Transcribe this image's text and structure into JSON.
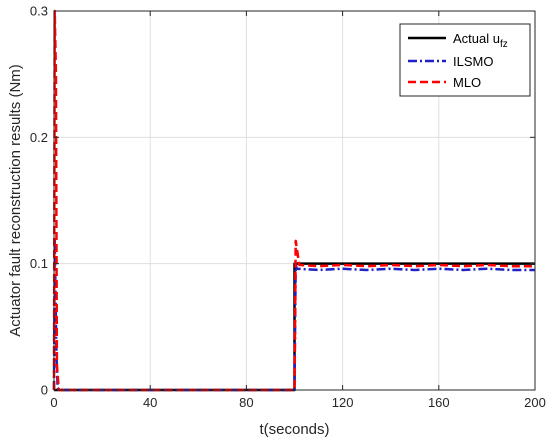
{
  "chart_data": {
    "type": "line",
    "title": "",
    "xlabel": "t(seconds)",
    "ylabel": "Actuator fault reconstruction results (Nm)",
    "xlim": [
      0,
      200
    ],
    "ylim": [
      0,
      0.3
    ],
    "xticks": [
      "0",
      "40",
      "80",
      "120",
      "160",
      "200"
    ],
    "yticks": [
      "0",
      "0.1",
      "0.2",
      "0.3"
    ],
    "grid": true,
    "legend_position": "top-right",
    "series": [
      {
        "name": "Actual u",
        "subscript": "fz",
        "color": "#000000",
        "style": "solid",
        "x": [
          0,
          100,
          100,
          200
        ],
        "y": [
          0,
          0,
          0.1,
          0.1
        ]
      },
      {
        "name": "ILSMO",
        "color": "#2020c8",
        "style": "dashdot",
        "x": [
          0,
          0.3,
          1.0,
          1.5,
          2.0,
          100,
          100,
          100.5,
          101,
          110,
          120,
          130,
          140,
          150,
          160,
          170,
          180,
          190,
          200
        ],
        "y": [
          0,
          0.12,
          0.03,
          0.002,
          0,
          0,
          0.002,
          0.099,
          0.096,
          0.095,
          0.096,
          0.095,
          0.096,
          0.095,
          0.096,
          0.095,
          0.096,
          0.095,
          0.095
        ]
      },
      {
        "name": "MLO",
        "color": "#ff0000",
        "style": "dashed",
        "x": [
          0,
          0.3,
          0.8,
          1.2,
          2.0,
          100,
          100,
          100.5,
          102,
          110,
          120,
          130,
          140,
          150,
          160,
          170,
          180,
          190,
          200
        ],
        "y": [
          0,
          0.3,
          0.25,
          0.02,
          0,
          0,
          0.003,
          0.118,
          0.099,
          0.098,
          0.099,
          0.098,
          0.099,
          0.098,
          0.099,
          0.098,
          0.099,
          0.098,
          0.098
        ]
      }
    ]
  }
}
